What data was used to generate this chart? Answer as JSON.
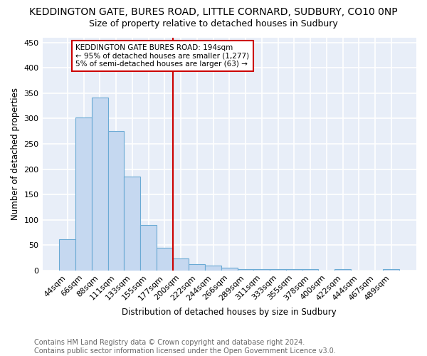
{
  "title": "KEDDINGTON GATE, BURES ROAD, LITTLE CORNARD, SUDBURY, CO10 0NP",
  "subtitle": "Size of property relative to detached houses in Sudbury",
  "xlabel": "Distribution of detached houses by size in Sudbury",
  "ylabel": "Number of detached properties",
  "footer_line1": "Contains HM Land Registry data © Crown copyright and database right 2024.",
  "footer_line2": "Contains public sector information licensed under the Open Government Licence v3.0.",
  "bar_labels": [
    "44sqm",
    "66sqm",
    "88sqm",
    "111sqm",
    "133sqm",
    "155sqm",
    "177sqm",
    "200sqm",
    "222sqm",
    "244sqm",
    "266sqm",
    "289sqm",
    "311sqm",
    "333sqm",
    "355sqm",
    "378sqm",
    "400sqm",
    "422sqm",
    "444sqm",
    "467sqm",
    "489sqm"
  ],
  "bar_values": [
    62,
    302,
    341,
    275,
    185,
    90,
    45,
    23,
    13,
    9,
    5,
    3,
    2,
    2,
    2,
    2,
    0,
    2,
    0,
    0,
    3
  ],
  "bar_color": "#c5d8f0",
  "bar_edge_color": "#6aaad4",
  "vline_x_index": 7,
  "vline_color": "#cc0000",
  "annotation_title": "KEDDINGTON GATE BURES ROAD: 194sqm",
  "annotation_line1": "← 95% of detached houses are smaller (1,277)",
  "annotation_line2": "5% of semi-detached houses are larger (63) →",
  "annotation_box_color": "#cc0000",
  "ylim": [
    0,
    460
  ],
  "yticks": [
    0,
    50,
    100,
    150,
    200,
    250,
    300,
    350,
    400,
    450
  ],
  "fig_background_color": "#ffffff",
  "plot_background_color": "#e8eef8",
  "grid_color": "#ffffff",
  "title_fontsize": 10,
  "subtitle_fontsize": 9,
  "axis_label_fontsize": 8.5,
  "tick_fontsize": 8,
  "footer_fontsize": 7
}
